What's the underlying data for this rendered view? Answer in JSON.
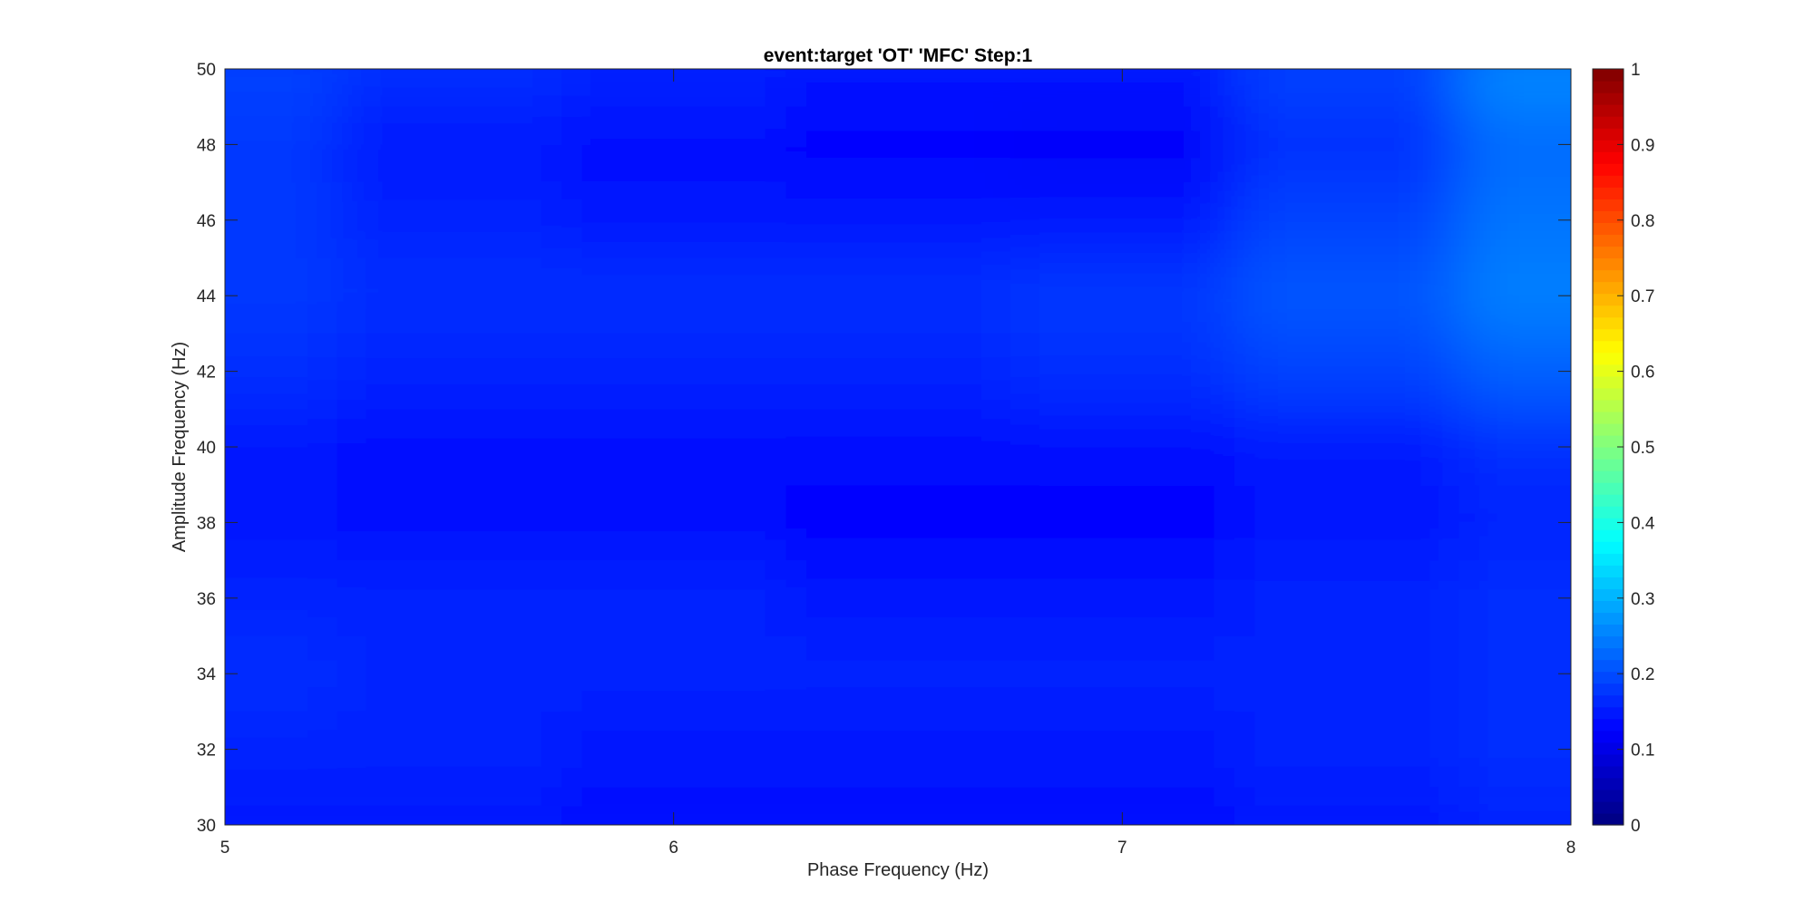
{
  "chart_data": {
    "type": "heatmap",
    "title": "event:target 'OT'  'MFC' Step:1",
    "xlabel": "Phase Frequency (Hz)",
    "ylabel": "Amplitude Frequency (Hz)",
    "xlim": [
      5,
      8
    ],
    "ylim": [
      30,
      50
    ],
    "x_ticks": [
      "5",
      "6",
      "7",
      "8"
    ],
    "y_ticks": [
      "30",
      "32",
      "34",
      "36",
      "38",
      "40",
      "42",
      "44",
      "46",
      "48",
      "50"
    ],
    "x": [
      5,
      5.5,
      6,
      6.5,
      7,
      7.5,
      8
    ],
    "y": [
      30,
      32,
      34,
      36,
      38,
      40,
      42,
      44,
      46,
      48,
      50
    ],
    "z": [
      [
        0.15,
        0.15,
        0.14,
        0.14,
        0.14,
        0.15,
        0.16
      ],
      [
        0.16,
        0.16,
        0.15,
        0.15,
        0.15,
        0.16,
        0.17
      ],
      [
        0.17,
        0.16,
        0.16,
        0.16,
        0.16,
        0.16,
        0.17
      ],
      [
        0.16,
        0.16,
        0.16,
        0.15,
        0.15,
        0.16,
        0.17
      ],
      [
        0.15,
        0.14,
        0.14,
        0.13,
        0.13,
        0.15,
        0.16
      ],
      [
        0.15,
        0.14,
        0.14,
        0.14,
        0.14,
        0.15,
        0.17
      ],
      [
        0.17,
        0.16,
        0.16,
        0.16,
        0.17,
        0.19,
        0.22
      ],
      [
        0.18,
        0.17,
        0.17,
        0.17,
        0.18,
        0.21,
        0.25
      ],
      [
        0.18,
        0.16,
        0.15,
        0.15,
        0.15,
        0.19,
        0.24
      ],
      [
        0.18,
        0.15,
        0.14,
        0.13,
        0.12,
        0.17,
        0.23
      ],
      [
        0.19,
        0.17,
        0.16,
        0.15,
        0.15,
        0.19,
        0.26
      ]
    ],
    "colorbar": {
      "colormap": "jet",
      "range": [
        0,
        1
      ],
      "ticks": [
        "0",
        "0.1",
        "0.2",
        "0.3",
        "0.4",
        "0.5",
        "0.6",
        "0.7",
        "0.8",
        "0.9",
        "1"
      ]
    },
    "grid": false
  }
}
